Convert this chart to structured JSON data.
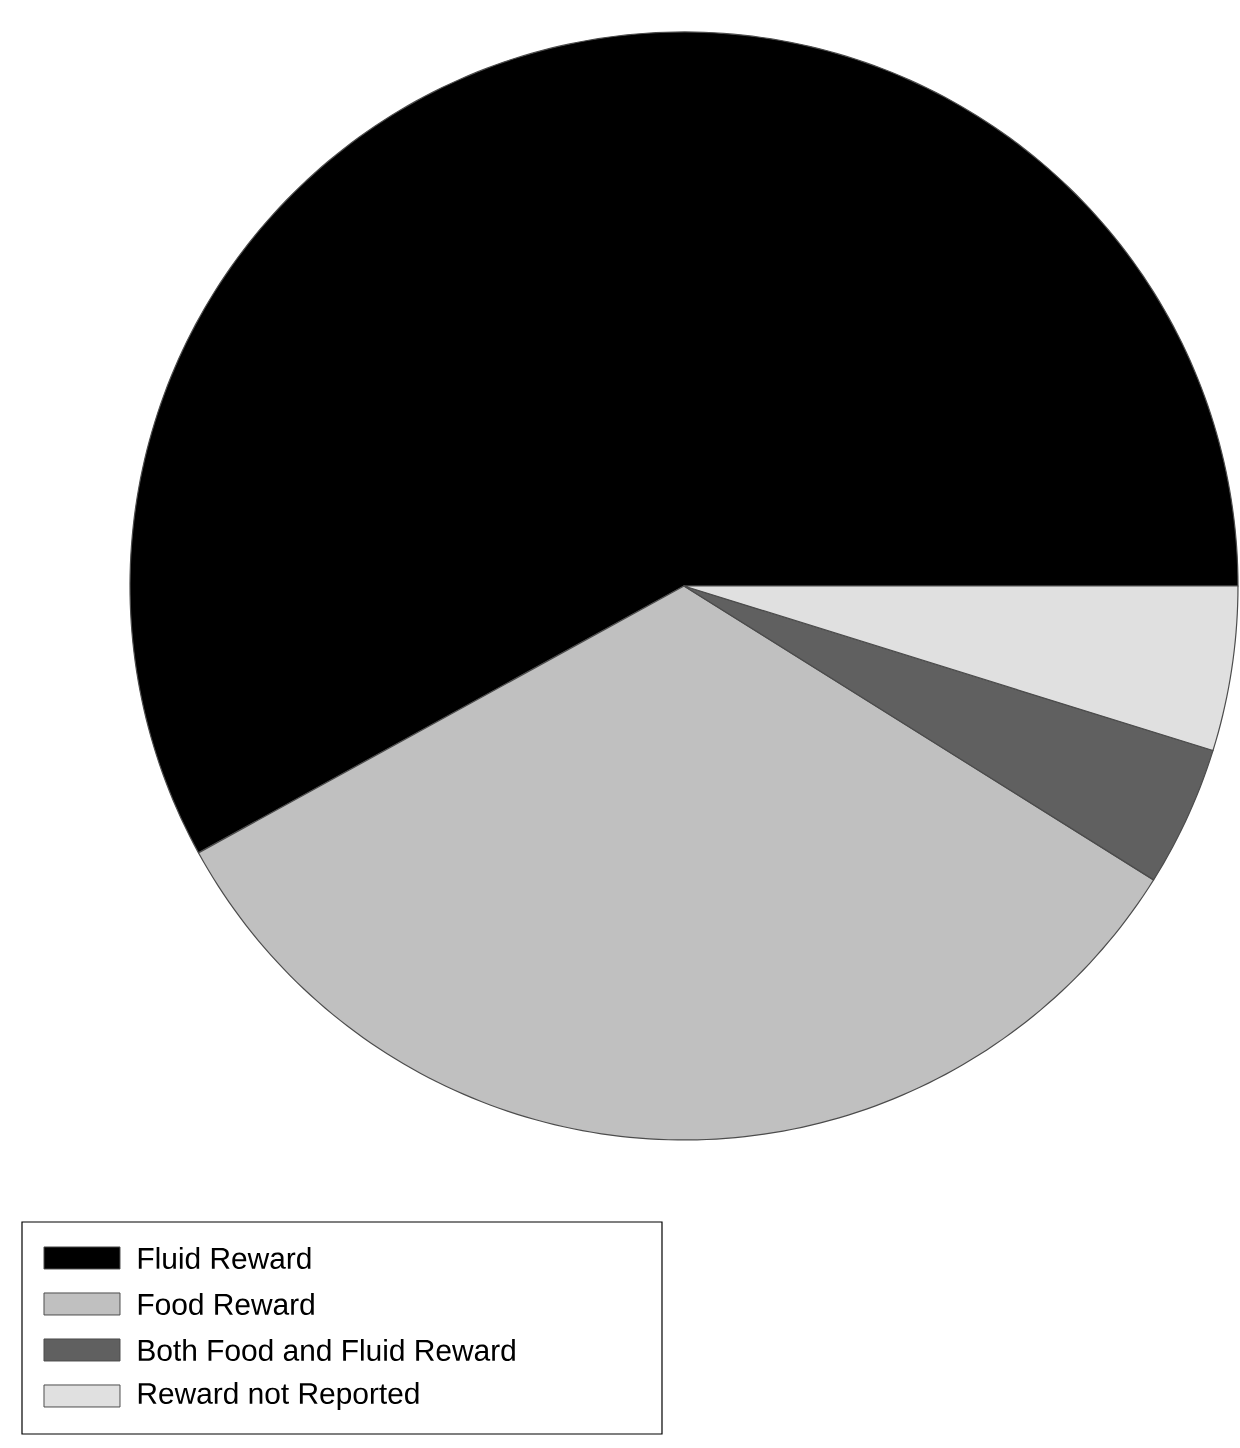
{
  "chart_data": {
    "type": "pie",
    "categories": [
      "Fluid Reward",
      "Food Reward",
      "Both Food and Fluid Reward",
      "Reward not Reported"
    ],
    "values": [
      58,
      33.1,
      4.1,
      4.8
    ],
    "colors": [
      "#000000",
      "#c0c0c0",
      "#606060",
      "#e0e0e0"
    ],
    "legend": "bottom left"
  }
}
